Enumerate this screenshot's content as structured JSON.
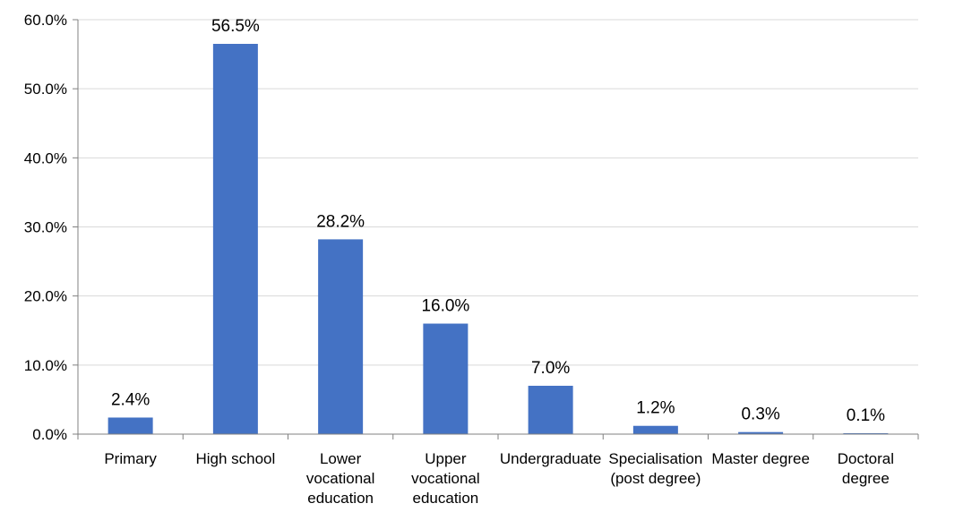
{
  "chart_data": {
    "type": "bar",
    "categories": [
      [
        "Primary"
      ],
      [
        "High school"
      ],
      [
        "Lower",
        "vocational",
        "education"
      ],
      [
        "Upper",
        "vocational",
        "education"
      ],
      [
        "Undergraduate"
      ],
      [
        "Specialisation",
        "(post degree)"
      ],
      [
        "Master degree"
      ],
      [
        "Doctoral",
        "degree"
      ]
    ],
    "values": [
      2.4,
      56.5,
      28.2,
      16.0,
      7.0,
      1.2,
      0.3,
      0.1
    ],
    "data_labels": [
      "2.4%",
      "56.5%",
      "28.2%",
      "16.0%",
      "7.0%",
      "1.2%",
      "0.3%",
      "0.1%"
    ],
    "y_ticks": [
      0,
      10,
      20,
      30,
      40,
      50,
      60
    ],
    "y_tick_labels": [
      "0.0%",
      "10.0%",
      "20.0%",
      "30.0%",
      "40.0%",
      "50.0%",
      "60.0%"
    ],
    "ylim": [
      0,
      60
    ],
    "title": "",
    "xlabel": "",
    "ylabel": "",
    "grid": true,
    "legend": "none",
    "colors": {
      "bar": "#4472C4",
      "grid": "#D9D9D9",
      "axis": "#808080",
      "text": "#000000"
    }
  }
}
